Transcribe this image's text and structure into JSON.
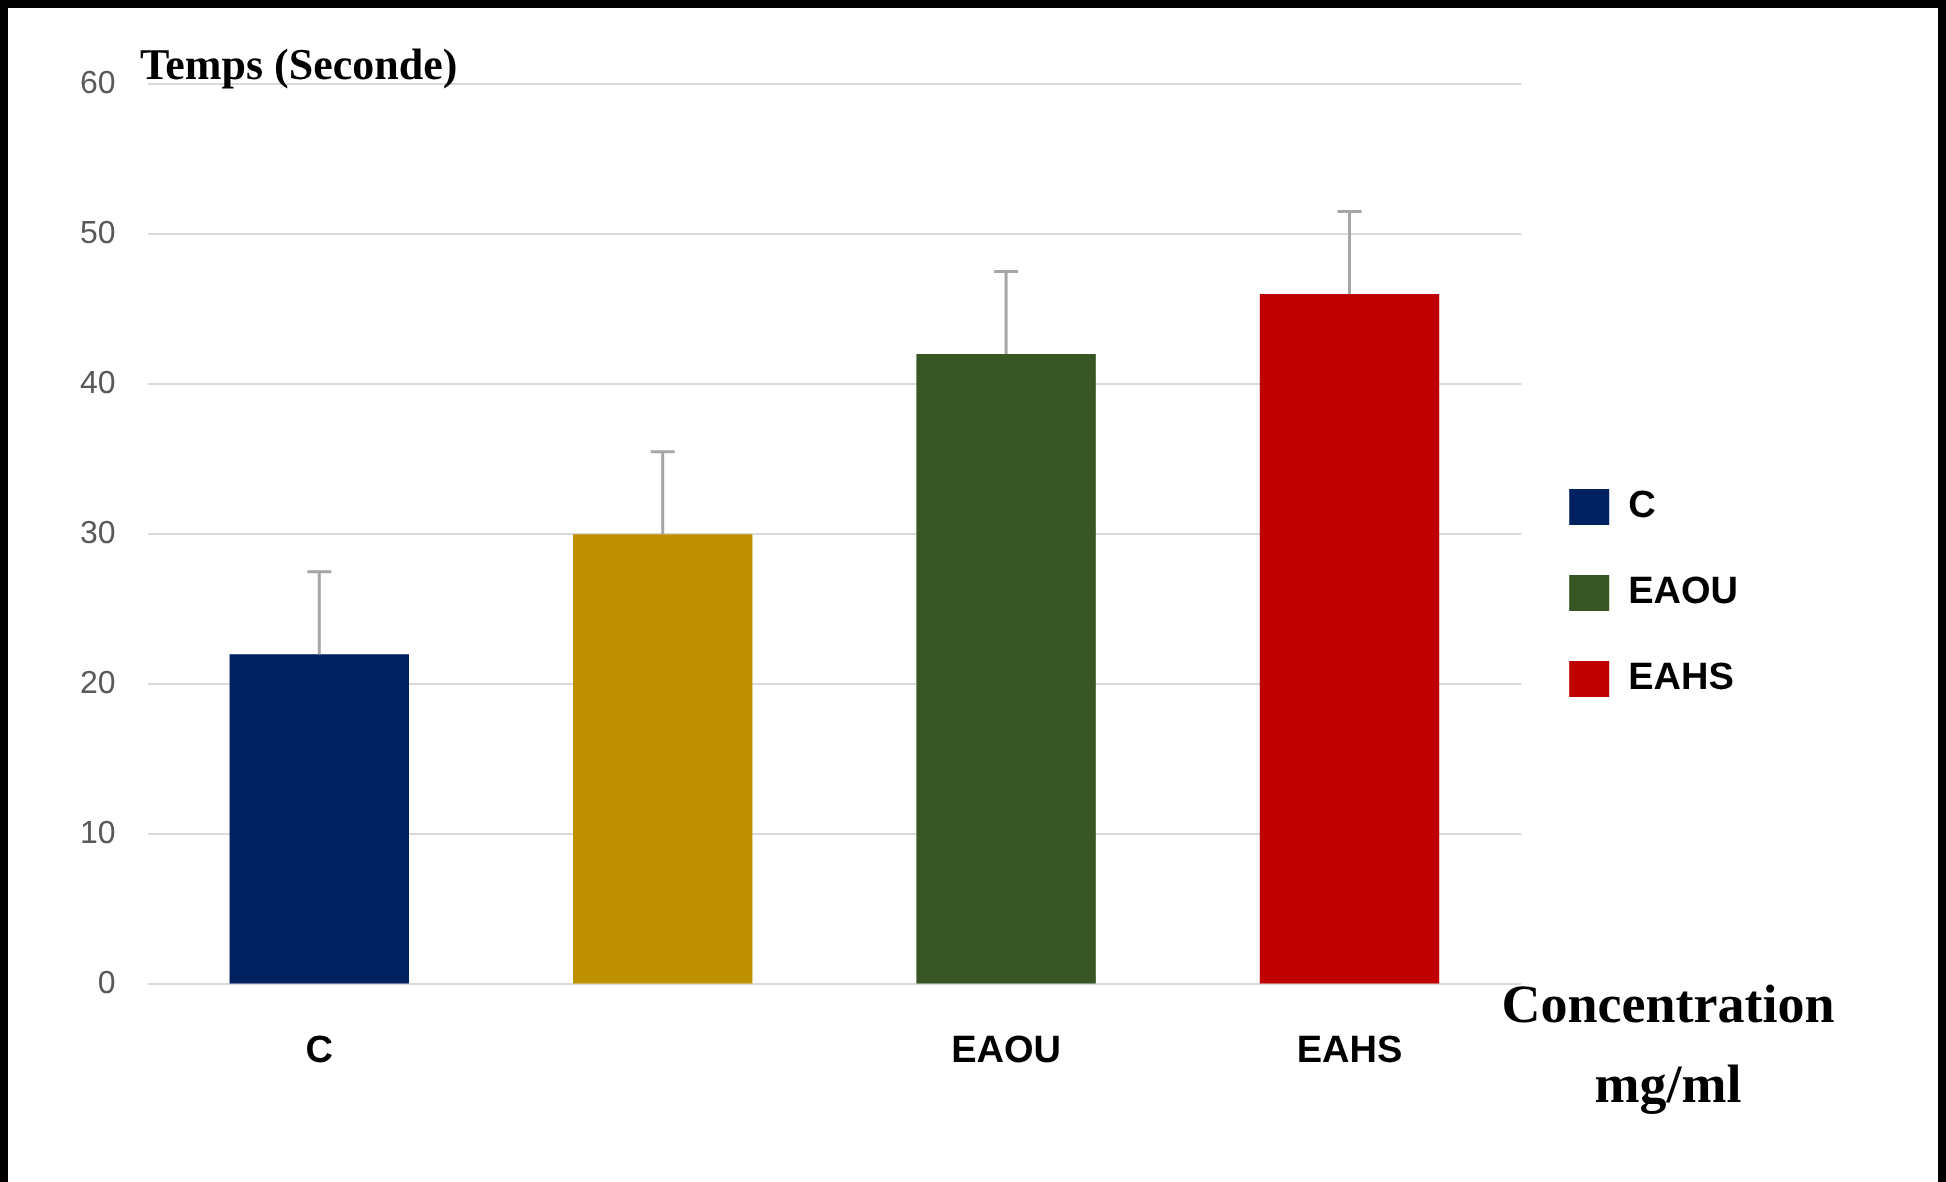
{
  "chart_data": {
    "type": "bar",
    "ylabel": "Temps (Seconde)",
    "xlabel": "Concentration mg/ml",
    "categories": [
      "C",
      null,
      "EAOU",
      "EAHS"
    ],
    "series": [
      {
        "name": "C",
        "color": "#002060",
        "values": [
          22,
          null,
          null,
          null
        ],
        "errors": [
          [
            22,
            27.5
          ],
          null,
          null,
          null
        ]
      },
      {
        "color": "#bf9000",
        "values": [
          null,
          30,
          null,
          null
        ],
        "errors": [
          null,
          [
            30,
            35.5
          ],
          null,
          null
        ]
      },
      {
        "name": "EAOU",
        "color": "#375623",
        "values": [
          null,
          null,
          42,
          null
        ],
        "errors": [
          null,
          null,
          [
            42,
            47.5
          ],
          null
        ]
      },
      {
        "name": "EAHS",
        "color": "#c00000",
        "values": [
          null,
          null,
          null,
          46
        ],
        "errors": [
          null,
          null,
          null,
          [
            46,
            51.5
          ]
        ]
      }
    ],
    "ylim": [
      0,
      60
    ],
    "yticks": [
      0,
      10,
      20,
      30,
      40,
      50,
      60
    ],
    "grid": "y",
    "legend": "right"
  }
}
